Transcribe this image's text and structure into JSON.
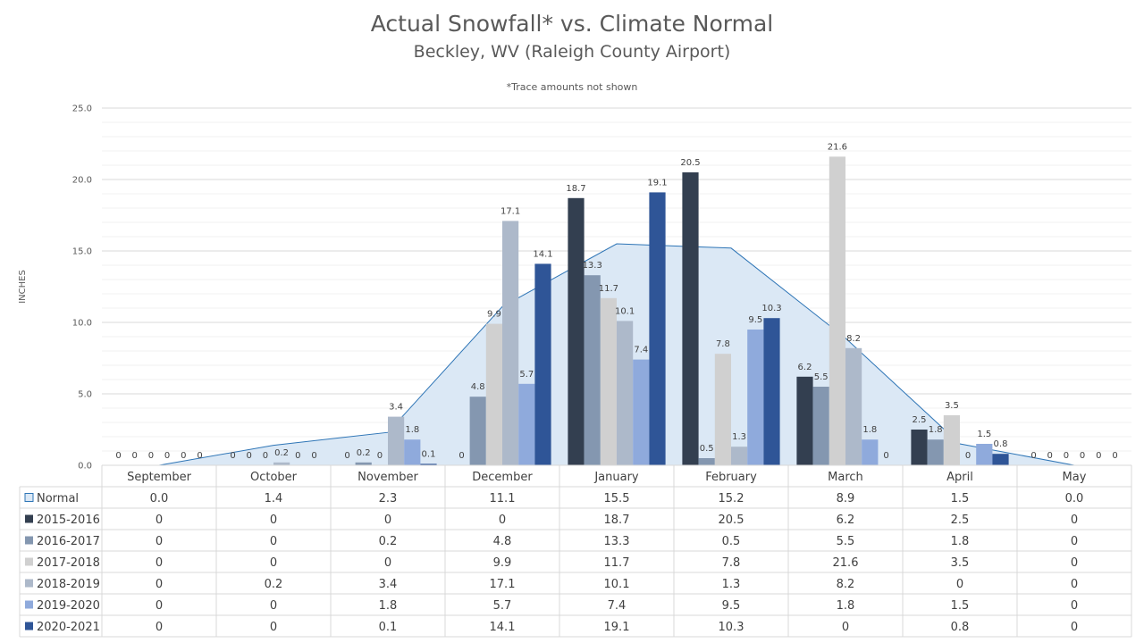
{
  "chart_data": {
    "type": "bar",
    "title": "Actual Snowfall* vs. Climate Normal",
    "subtitle": "Beckley, WV (Raleigh County Airport)",
    "note": "*Trace amounts not shown",
    "ylabel": "INCHES",
    "ylim": [
      0,
      25
    ],
    "yticks": [
      "0.0",
      "5.0",
      "10.0",
      "15.0",
      "20.0",
      "25.0"
    ],
    "grid": true,
    "data_table": true,
    "categories": [
      "September",
      "October",
      "November",
      "December",
      "January",
      "February",
      "March",
      "April",
      "May"
    ],
    "normal": {
      "name": "Normal",
      "type": "area",
      "color": "#dbe8f5",
      "line_color": "#2e75b6",
      "values": [
        0.0,
        1.4,
        2.3,
        11.1,
        15.5,
        15.2,
        8.9,
        1.5,
        0.0
      ],
      "labels": [
        "0.0",
        "1.4",
        "2.3",
        "11.1",
        "15.5",
        "15.2",
        "8.9",
        "1.5",
        "0.0"
      ]
    },
    "series": [
      {
        "name": "2015-2016",
        "color": "#333f50",
        "values": [
          0,
          0,
          0,
          0,
          18.7,
          20.5,
          6.2,
          2.5,
          0
        ],
        "labels": [
          "0",
          "0",
          "0",
          "0",
          "18.7",
          "20.5",
          "6.2",
          "2.5",
          "0"
        ]
      },
      {
        "name": "2016-2017",
        "color": "#8497b0",
        "values": [
          0,
          0,
          0.2,
          4.8,
          13.3,
          0.5,
          5.5,
          1.8,
          0
        ],
        "labels": [
          "0",
          "0",
          "0.2",
          "4.8",
          "13.3",
          "0.5",
          "5.5",
          "1.8",
          "0"
        ]
      },
      {
        "name": "2017-2018",
        "color": "#d0d0d0",
        "values": [
          0,
          0,
          0,
          9.9,
          11.7,
          7.8,
          21.6,
          3.5,
          0
        ],
        "labels": [
          "0",
          "0",
          "0",
          "9.9",
          "11.7",
          "7.8",
          "21.6",
          "3.5",
          "0"
        ]
      },
      {
        "name": "2018-2019",
        "color": "#adb9ca",
        "values": [
          0,
          0.2,
          3.4,
          17.1,
          10.1,
          1.3,
          8.2,
          0,
          0
        ],
        "labels": [
          "0",
          "0.2",
          "3.4",
          "17.1",
          "10.1",
          "1.3",
          "8.2",
          "0",
          "0"
        ]
      },
      {
        "name": "2019-2020",
        "color": "#8faadc",
        "values": [
          0,
          0,
          1.8,
          5.7,
          7.4,
          9.5,
          1.8,
          1.5,
          0
        ],
        "labels": [
          "0",
          "0",
          "1.8",
          "5.7",
          "7.4",
          "9.5",
          "1.8",
          "1.5",
          "0"
        ]
      },
      {
        "name": "2020-2021",
        "color": "#2f5597",
        "values": [
          0,
          0,
          0.1,
          14.1,
          19.1,
          10.3,
          0,
          0.8,
          0
        ],
        "labels": [
          "0",
          "0",
          "0.1",
          "14.1",
          "19.1",
          "10.3",
          "0",
          "0.8",
          "0"
        ]
      }
    ]
  }
}
